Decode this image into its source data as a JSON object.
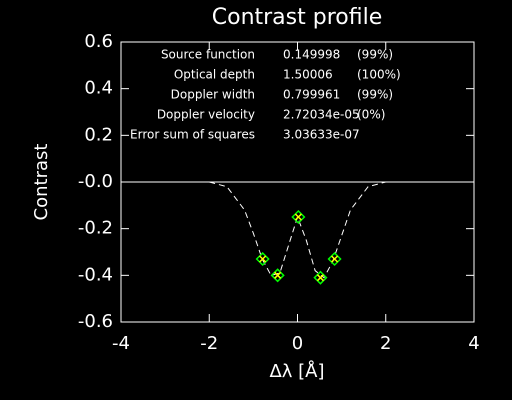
{
  "chart_data": {
    "type": "scatter",
    "title": "Contrast profile",
    "x_label": "Δλ [Å]",
    "y_label": "Contrast",
    "xlim": [
      -4,
      4
    ],
    "xticks": [
      -4,
      -2,
      0,
      2,
      4
    ],
    "ylim": [
      -0.6,
      0.6
    ],
    "yticks": [
      -0.6,
      -0.4,
      -0.2,
      {
        "value": 0,
        "label": "-0.0"
      },
      0.2,
      0.4,
      0.6
    ],
    "points": {
      "color": "#00ff00",
      "cross_color": "#ffff00",
      "x": [
        -0.79,
        -0.45,
        0.02,
        0.52,
        0.84
      ],
      "y": [
        -0.33,
        -0.4,
        -0.15,
        -0.41,
        -0.33
      ]
    },
    "fit": {
      "color": "#ffffff",
      "x": [
        -2,
        -1.6,
        -1.2,
        -1.0,
        -0.8,
        -0.6,
        -0.4,
        -0.2,
        0,
        0.2,
        0.4,
        0.6,
        0.8,
        1.0,
        1.2,
        1.6,
        2
      ],
      "y": [
        0,
        -0.02,
        -0.12,
        -0.22,
        -0.33,
        -0.4,
        -0.39,
        -0.27,
        -0.15,
        -0.25,
        -0.38,
        -0.41,
        -0.34,
        -0.23,
        -0.12,
        -0.02,
        0
      ]
    },
    "reference_line": 0,
    "annotation": [
      {
        "label": "Source function",
        "value": "0.149998",
        "pct": "(99%)"
      },
      {
        "label": "Optical depth",
        "value": "1.50006",
        "pct": "(100%)"
      },
      {
        "label": "Doppler width",
        "value": "0.799961",
        "pct": "(99%)"
      },
      {
        "label": "Doppler velocity",
        "value": "2.72034e-05",
        "pct": "(0%)"
      },
      {
        "label": "Error sum of squares",
        "value": "3.03633e-07"
      }
    ]
  }
}
